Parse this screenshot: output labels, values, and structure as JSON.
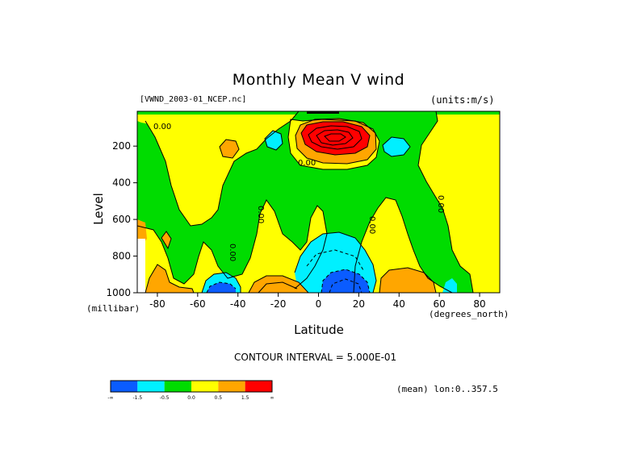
{
  "chart_data": {
    "type": "heatmap",
    "title": "Monthly Mean V wind",
    "subtitle_left": "[VWND_2003-01_NCEP.nc]",
    "subtitle_right": "(units:m/s)",
    "xlabel": "Latitude",
    "ylabel": "Level",
    "x_unit": "(degrees_north)",
    "y_unit": "(millibar)",
    "xlim": [
      -90,
      90
    ],
    "ylim": [
      1000,
      10
    ],
    "x_ticks": [
      -80,
      -60,
      -40,
      -20,
      0,
      20,
      40,
      60,
      80
    ],
    "x_tick_labels": [
      "-80",
      "-60",
      "-40",
      "-20",
      "0",
      "20",
      "40",
      "60",
      "80"
    ],
    "y_ticks": [
      200,
      400,
      600,
      800,
      1000
    ],
    "y_tick_labels": [
      "200",
      "400",
      "600",
      "800",
      "1000"
    ],
    "contour_interval": "CONTOUR INTERVAL = 5.000E-01",
    "averaging_note": "(mean) lon:0..357.5",
    "contour_labels": [
      "0.00",
      "0.00",
      "0.00",
      "0.00",
      "0.00",
      "0.00"
    ],
    "colorbar": {
      "colors": [
        "#0a5cff",
        "#00f0ff",
        "#00dc00",
        "#ffff00",
        "#ffa600",
        "#ff0000"
      ],
      "labels": [
        "-∞",
        "-1.5",
        "-0.5",
        "0.0",
        "0.5",
        "1.5",
        "∞"
      ]
    },
    "features": [
      {
        "kind": "max",
        "lat": 12,
        "level": 150,
        "value": 2.5,
        "class": 5
      },
      {
        "kind": "min",
        "lat": 12,
        "level": 960,
        "value": -2.5,
        "class": 0
      },
      {
        "kind": "min",
        "lat": -50,
        "level": 970,
        "value": -1.7,
        "class": 0
      },
      {
        "kind": "max",
        "lat": -20,
        "level": 980,
        "value": 1.2,
        "class": 4
      },
      {
        "kind": "max",
        "lat": 50,
        "level": 960,
        "value": 1.0,
        "class": 4
      },
      {
        "kind": "min",
        "lat": 35,
        "level": 200,
        "value": -0.8,
        "class": 1
      }
    ]
  }
}
